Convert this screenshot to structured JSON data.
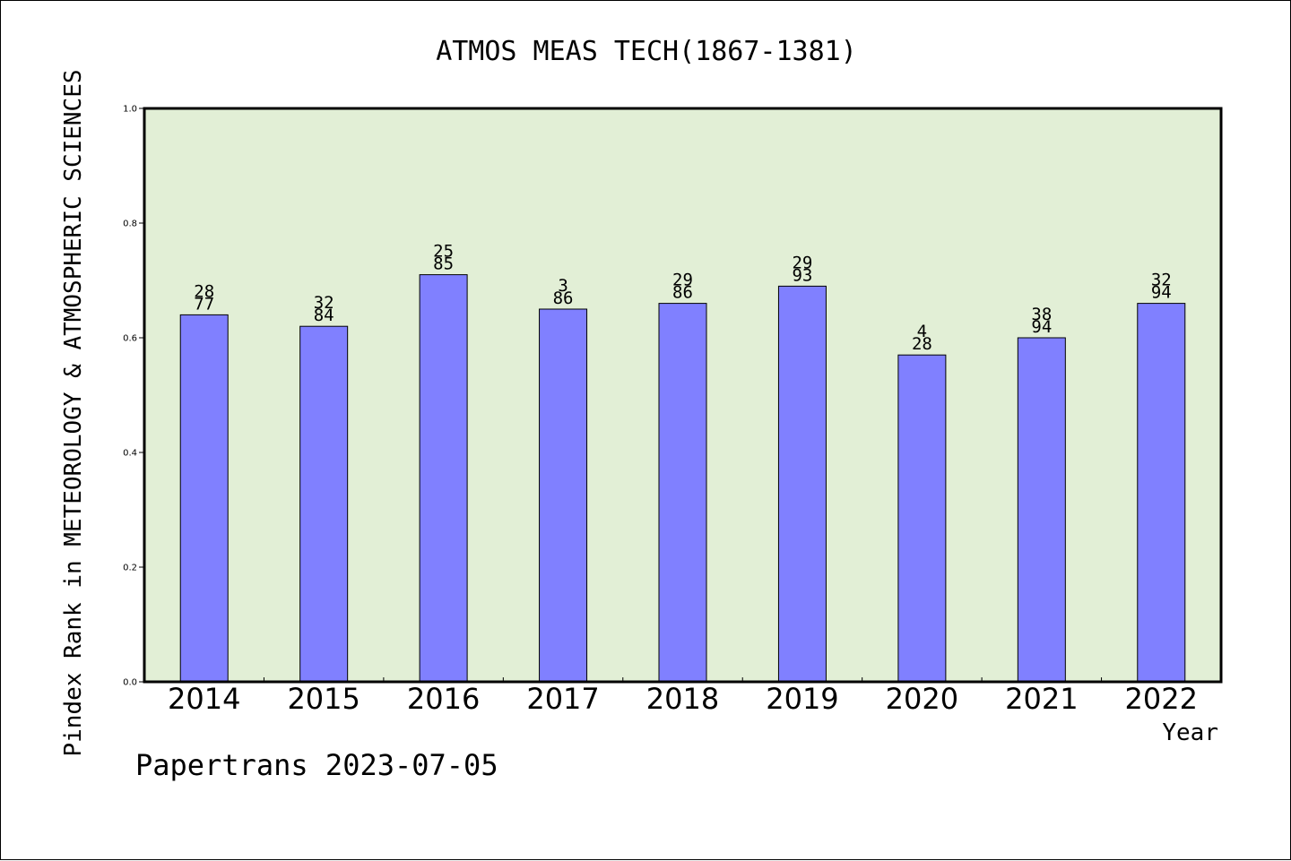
{
  "chart_data": {
    "type": "bar",
    "title": "ATMOS MEAS TECH(1867-1381)",
    "xlabel": "Year",
    "ylabel": "Pindex Rank in METEOROLOGY & ATMOSPHERIC SCIENCES",
    "footer": "Papertrans 2023-07-05",
    "categories": [
      "2014",
      "2015",
      "2016",
      "2017",
      "2018",
      "2019",
      "2020",
      "2021",
      "2022"
    ],
    "values": [
      0.64,
      0.62,
      0.71,
      0.65,
      0.66,
      0.69,
      0.57,
      0.6,
      0.66
    ],
    "label_top": [
      "28",
      "32",
      "25",
      "3",
      "29",
      "29",
      "4",
      "38",
      "32"
    ],
    "label_bottom": [
      "77",
      "84",
      "85",
      "86",
      "86",
      "93",
      "28",
      "94",
      "94"
    ],
    "ylim": [
      0,
      1.0
    ],
    "yticks": [
      "0.0",
      "0.2",
      "0.4",
      "0.6",
      "0.8",
      "1.0"
    ],
    "grid": false,
    "colors": {
      "plot_background": "#e2efd6",
      "bar_fill": "#8080ff",
      "bar_stroke": "#000000",
      "text": "#000000"
    }
  }
}
